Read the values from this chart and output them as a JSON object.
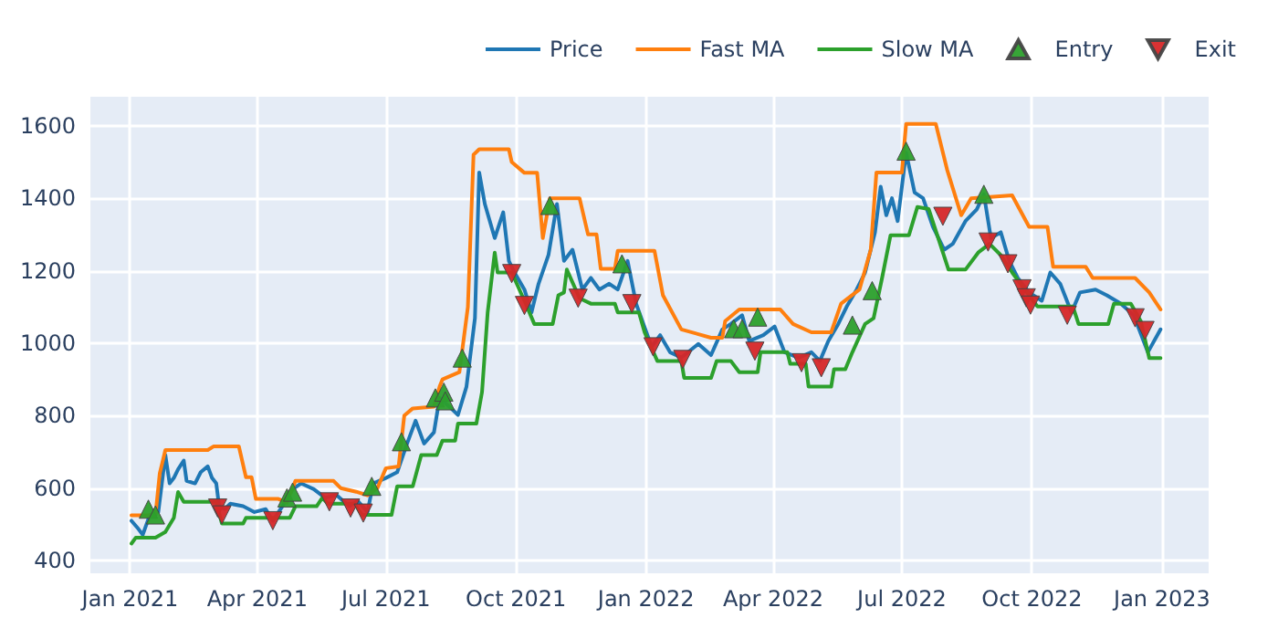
{
  "chart_data": {
    "type": "line",
    "legend": "top right",
    "grid": true,
    "marker": "none",
    "xlim": [
      "2020-12-04",
      "2023-02-03"
    ],
    "ylim": [
      365,
      1680
    ],
    "yticks": [
      400,
      600,
      800,
      1000,
      1200,
      1400,
      1600
    ],
    "xticks": [
      {
        "value": "2021-01-01",
        "label": "Jan 2021"
      },
      {
        "value": "2021-04-01",
        "label": "Apr 2021"
      },
      {
        "value": "2021-07-01",
        "label": "Jul 2021"
      },
      {
        "value": "2021-10-01",
        "label": "Oct 2021"
      },
      {
        "value": "2022-01-01",
        "label": "Jan 2022"
      },
      {
        "value": "2022-04-01",
        "label": "Apr 2022"
      },
      {
        "value": "2022-07-01",
        "label": "Jul 2022"
      },
      {
        "value": "2022-10-01",
        "label": "Oct 2022"
      },
      {
        "value": "2023-01-01",
        "label": "Jan 2023"
      }
    ],
    "series": [
      {
        "name": "Price",
        "color": "#1f77b4",
        "x": [
          "2021-01-02",
          "2021-01-07",
          "2021-01-10",
          "2021-01-15",
          "2021-01-21",
          "2021-01-24",
          "2021-01-26",
          "2021-01-29",
          "2021-02-01",
          "2021-02-04",
          "2021-02-08",
          "2021-02-10",
          "2021-02-16",
          "2021-02-20",
          "2021-02-25",
          "2021-02-28",
          "2021-03-03",
          "2021-03-05",
          "2021-03-09",
          "2021-03-13",
          "2021-03-22",
          "2021-03-30",
          "2021-04-07",
          "2021-04-12",
          "2021-04-20",
          "2021-04-26",
          "2021-05-02",
          "2021-05-11",
          "2021-05-19",
          "2021-05-27",
          "2021-06-05",
          "2021-06-11",
          "2021-06-18",
          "2021-06-22",
          "2021-07-01",
          "2021-07-09",
          "2021-07-16",
          "2021-07-22",
          "2021-07-28",
          "2021-08-04",
          "2021-08-08",
          "2021-08-17",
          "2021-08-21",
          "2021-08-27",
          "2021-09-02",
          "2021-09-05",
          "2021-09-09",
          "2021-09-16",
          "2021-09-22",
          "2021-09-26",
          "2021-09-30",
          "2021-10-07",
          "2021-10-12",
          "2021-10-17",
          "2021-10-24",
          "2021-10-30",
          "2021-11-04",
          "2021-11-10",
          "2021-11-17",
          "2021-11-23",
          "2021-11-29",
          "2021-12-06",
          "2021-12-12",
          "2021-12-19",
          "2021-12-25",
          "2022-01-05",
          "2022-01-11",
          "2022-01-18",
          "2022-01-26",
          "2022-02-07",
          "2022-02-16",
          "2022-02-24",
          "2022-03-02",
          "2022-03-10",
          "2022-03-15",
          "2022-03-25",
          "2022-04-02",
          "2022-04-09",
          "2022-04-19",
          "2022-04-28",
          "2022-05-04",
          "2022-05-10",
          "2022-05-17",
          "2022-05-23",
          "2022-05-30",
          "2022-06-05",
          "2022-06-12",
          "2022-06-16",
          "2022-06-20",
          "2022-06-24",
          "2022-06-28",
          "2022-07-04",
          "2022-07-10",
          "2022-07-16",
          "2022-07-23",
          "2022-07-31",
          "2022-08-06",
          "2022-08-15",
          "2022-08-23",
          "2022-08-28",
          "2022-09-02",
          "2022-09-09",
          "2022-09-15",
          "2022-09-21",
          "2022-09-29",
          "2022-10-08",
          "2022-10-14",
          "2022-10-21",
          "2022-10-29",
          "2022-11-04",
          "2022-11-15",
          "2022-11-23",
          "2022-12-03",
          "2022-12-12",
          "2022-12-22",
          "2022-12-31"
        ],
        "values": [
          510,
          487,
          471,
          526,
          534,
          628,
          691,
          613,
          628,
          652,
          676,
          620,
          613,
          644,
          660,
          628,
          613,
          550,
          542,
          557,
          550,
          534,
          542,
          510,
          557,
          597,
          613,
          597,
          573,
          581,
          550,
          565,
          534,
          613,
          628,
          644,
          723,
          786,
          723,
          754,
          849,
          817,
          802,
          880,
          1069,
          1471,
          1384,
          1290,
          1361,
          1227,
          1195,
          1148,
          1085,
          1164,
          1243,
          1384,
          1227,
          1258,
          1148,
          1180,
          1148,
          1164,
          1148,
          1227,
          1109,
          990,
          1022,
          975,
          960,
          998,
          967,
          1038,
          1053,
          1077,
          1006,
          1022,
          1046,
          975,
          960,
          975,
          951,
          1006,
          1053,
          1101,
          1148,
          1195,
          1306,
          1432,
          1353,
          1400,
          1337,
          1526,
          1416,
          1400,
          1321,
          1258,
          1274,
          1337,
          1369,
          1411,
          1290,
          1306,
          1227,
          1180,
          1140,
          1117,
          1195,
          1164,
          1085,
          1140,
          1148,
          1132,
          1109,
          1077,
          975,
          1038
        ]
      },
      {
        "name": "Fast MA",
        "color": "#ff7f0e",
        "x": [
          "2021-01-02",
          "2021-01-19",
          "2021-01-22",
          "2021-01-26",
          "2021-02-25",
          "2021-03-01",
          "2021-03-19",
          "2021-03-24",
          "2021-03-28",
          "2021-03-31",
          "2021-04-16",
          "2021-04-22",
          "2021-04-28",
          "2021-05-25",
          "2021-05-30",
          "2021-06-10",
          "2021-06-18",
          "2021-06-25",
          "2021-07-01",
          "2021-07-10",
          "2021-07-14",
          "2021-07-20",
          "2021-08-04",
          "2021-08-08",
          "2021-08-10",
          "2021-08-22",
          "2021-08-28",
          "2021-09-01",
          "2021-09-05",
          "2021-09-26",
          "2021-09-28",
          "2021-10-07",
          "2021-10-16",
          "2021-10-20",
          "2021-10-25",
          "2021-11-15",
          "2021-11-21",
          "2021-11-27",
          "2021-11-30",
          "2021-12-10",
          "2021-12-12",
          "2022-01-07",
          "2022-01-13",
          "2022-01-26",
          "2022-02-16",
          "2022-02-24",
          "2022-02-26",
          "2022-03-08",
          "2022-04-06",
          "2022-04-15",
          "2022-04-28",
          "2022-05-12",
          "2022-05-19",
          "2022-06-01",
          "2022-06-09",
          "2022-06-13",
          "2022-07-01",
          "2022-07-04",
          "2022-07-25",
          "2022-08-02",
          "2022-08-12",
          "2022-08-19",
          "2022-09-17",
          "2022-09-29",
          "2022-10-12",
          "2022-10-16",
          "2022-11-08",
          "2022-11-13",
          "2022-12-13",
          "2022-12-23",
          "2022-12-31"
        ],
        "values": [
          525,
          525,
          640,
          705,
          705,
          715,
          715,
          630,
          630,
          570,
          570,
          560,
          620,
          620,
          600,
          590,
          580,
          600,
          655,
          660,
          800,
          820,
          825,
          880,
          900,
          920,
          1100,
          1520,
          1535,
          1535,
          1500,
          1470,
          1470,
          1290,
          1400,
          1400,
          1300,
          1300,
          1205,
          1205,
          1255,
          1255,
          1132,
          1038,
          1015,
          1015,
          1061,
          1093,
          1093,
          1053,
          1030,
          1030,
          1109,
          1148,
          1258,
          1471,
          1471,
          1605,
          1605,
          1479,
          1353,
          1400,
          1408,
          1321,
          1321,
          1211,
          1211,
          1180,
          1180,
          1140,
          1093
        ]
      },
      {
        "name": "Slow MA",
        "color": "#2ca02c",
        "x": [
          "2021-01-02",
          "2021-01-05",
          "2021-01-19",
          "2021-01-26",
          "2021-02-01",
          "2021-02-04",
          "2021-02-08",
          "2021-03-03",
          "2021-03-07",
          "2021-03-22",
          "2021-03-24",
          "2021-04-24",
          "2021-04-28",
          "2021-05-13",
          "2021-05-17",
          "2021-05-21",
          "2021-06-09",
          "2021-06-14",
          "2021-07-05",
          "2021-07-09",
          "2021-07-20",
          "2021-07-26",
          "2021-08-06",
          "2021-08-10",
          "2021-08-19",
          "2021-08-21",
          "2021-09-03",
          "2021-09-07",
          "2021-09-11",
          "2021-09-16",
          "2021-09-18",
          "2021-09-28",
          "2021-10-07",
          "2021-10-14",
          "2021-10-27",
          "2021-10-31",
          "2021-11-04",
          "2021-11-06",
          "2021-11-15",
          "2021-11-23",
          "2021-12-10",
          "2021-12-12",
          "2021-12-27",
          "2021-12-31",
          "2022-01-09",
          "2022-01-26",
          "2022-01-28",
          "2022-02-16",
          "2022-02-20",
          "2022-03-02",
          "2022-03-08",
          "2022-03-21",
          "2022-03-23",
          "2022-04-11",
          "2022-04-13",
          "2022-04-24",
          "2022-04-26",
          "2022-05-12",
          "2022-05-14",
          "2022-05-22",
          "2022-05-27",
          "2022-06-05",
          "2022-06-11",
          "2022-06-17",
          "2022-06-23",
          "2022-07-06",
          "2022-07-12",
          "2022-07-20",
          "2022-08-03",
          "2022-08-15",
          "2022-08-24",
          "2022-09-01",
          "2022-09-09",
          "2022-09-17",
          "2022-10-05",
          "2022-10-30",
          "2022-11-03",
          "2022-11-24",
          "2022-11-28",
          "2022-12-10",
          "2022-12-17",
          "2022-12-23",
          "2022-12-31"
        ],
        "values": [
          447,
          463,
          463,
          479,
          518,
          589,
          562,
          562,
          502,
          502,
          518,
          518,
          550,
          550,
          573,
          557,
          557,
          526,
          526,
          605,
          605,
          691,
          691,
          731,
          731,
          778,
          778,
          865,
          1085,
          1250,
          1195,
          1195,
          1117,
          1053,
          1053,
          1132,
          1140,
          1203,
          1124,
          1109,
          1109,
          1085,
          1085,
          1030,
          951,
          951,
          904,
          904,
          951,
          951,
          920,
          920,
          975,
          975,
          943,
          943,
          880,
          880,
          928,
          928,
          975,
          1053,
          1069,
          1180,
          1298,
          1298,
          1376,
          1370,
          1203,
          1203,
          1250,
          1274,
          1243,
          1195,
          1101,
          1101,
          1053,
          1053,
          1109,
          1109,
          1061,
          959,
          959
        ]
      },
      {
        "name": "Entry",
        "type": "scatter",
        "marker": "triangle",
        "color": "#2ca02c",
        "x": [
          "2021-01-14",
          "2021-01-19",
          "2021-04-22",
          "2021-04-26",
          "2021-06-21",
          "2021-07-12",
          "2021-08-05",
          "2021-08-11",
          "2021-08-12",
          "2021-08-24",
          "2021-10-25",
          "2021-12-15",
          "2022-03-04",
          "2022-03-10",
          "2022-03-21",
          "2022-05-27",
          "2022-06-10",
          "2022-07-04",
          "2022-08-28"
        ],
        "values": [
          542,
          526,
          573,
          589,
          605,
          728,
          849,
          865,
          841,
          959,
          1380,
          1219,
          1040,
          1040,
          1072,
          1050,
          1145,
          1530,
          1411
        ]
      },
      {
        "name": "Exit",
        "type": "scatter",
        "marker": "triangle-down",
        "color": "#d62728",
        "x": [
          "2021-03-04",
          "2021-03-07",
          "2021-04-12",
          "2021-05-22",
          "2021-06-06",
          "2021-06-15",
          "2021-09-28",
          "2021-10-07",
          "2021-11-14",
          "2021-12-22",
          "2022-01-06",
          "2022-01-27",
          "2022-03-19",
          "2022-04-21",
          "2022-05-05",
          "2022-07-30",
          "2022-08-31",
          "2022-09-14",
          "2022-09-24",
          "2022-09-27",
          "2022-09-30",
          "2022-10-26",
          "2022-12-13",
          "2022-12-20"
        ],
        "values": [
          545,
          526,
          510,
          562,
          545,
          531,
          1192,
          1104,
          1124,
          1109,
          990,
          955,
          978,
          946,
          932,
          1350,
          1279,
          1219,
          1150,
          1125,
          1105,
          1077,
          1070,
          1035
        ]
      }
    ]
  }
}
